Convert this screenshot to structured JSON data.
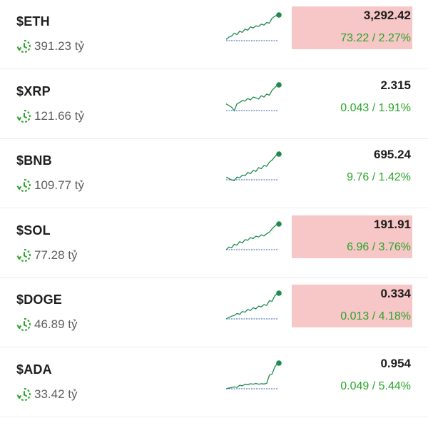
{
  "colors": {
    "highlight_bg": "#f7c6c6",
    "change_green": "#2aa52a",
    "sparkline_green": "#1e8a4c",
    "sparkline_red": "#c43c4a",
    "dashed_baseline": "#2e5fb0"
  },
  "icons": {
    "volume": "clock-refresh-icon"
  },
  "coins": [
    {
      "ticker": "$ETH",
      "volume": "391.23 tỷ",
      "price": "3,292.42",
      "change": "73.22 / 2.27%",
      "highlighted": true,
      "sparkline": [
        0.1,
        0.18,
        0.22,
        0.33,
        0.28,
        0.4,
        0.36,
        0.48,
        0.44,
        0.56,
        0.52,
        0.6,
        0.58,
        0.66,
        0.63,
        0.72,
        0.7,
        0.88,
        0.95,
        1.0
      ]
    },
    {
      "ticker": "$XRP",
      "volume": "121.66 tỷ",
      "price": "2.315",
      "change": "0.043 / 1.91%",
      "highlighted": false,
      "sparkline": [
        0.3,
        0.24,
        0.18,
        0.05,
        0.3,
        0.35,
        0.42,
        0.4,
        0.5,
        0.45,
        0.55,
        0.52,
        0.48,
        0.6,
        0.55,
        0.66,
        0.62,
        0.8,
        0.9,
        1.0
      ]
    },
    {
      "ticker": "$BNB",
      "volume": "109.77 tỷ",
      "price": "695.24",
      "change": "9.76 / 1.42%",
      "highlighted": false,
      "sparkline": [
        0.15,
        0.1,
        0.05,
        0.02,
        0.15,
        0.12,
        0.22,
        0.2,
        0.32,
        0.28,
        0.4,
        0.36,
        0.5,
        0.46,
        0.58,
        0.55,
        0.7,
        0.78,
        0.9,
        1.0
      ]
    },
    {
      "ticker": "$SOL",
      "volume": "77.28 tỷ",
      "price": "191.91",
      "change": "6.96 / 3.76%",
      "highlighted": true,
      "sparkline": [
        0.05,
        0.15,
        0.12,
        0.25,
        0.22,
        0.35,
        0.3,
        0.42,
        0.4,
        0.5,
        0.46,
        0.55,
        0.52,
        0.6,
        0.56,
        0.64,
        0.7,
        0.82,
        0.92,
        1.0
      ]
    },
    {
      "ticker": "$DOGE",
      "volume": "46.89 tỷ",
      "price": "0.334",
      "change": "0.013 / 4.18%",
      "highlighted": true,
      "sparkline": [
        0.05,
        0.1,
        0.15,
        0.18,
        0.25,
        0.22,
        0.32,
        0.3,
        0.4,
        0.36,
        0.46,
        0.42,
        0.52,
        0.5,
        0.58,
        0.55,
        0.72,
        0.7,
        0.9,
        1.0
      ]
    },
    {
      "ticker": "$ADA",
      "volume": "33.42 tỷ",
      "price": "0.954",
      "change": "0.049 / 5.44%",
      "highlighted": false,
      "sparkline": [
        0.05,
        0.08,
        0.1,
        0.12,
        0.1,
        0.18,
        0.16,
        0.22,
        0.2,
        0.24,
        0.22,
        0.25,
        0.22,
        0.24,
        0.23,
        0.25,
        0.55,
        0.6,
        0.85,
        1.0
      ]
    }
  ]
}
